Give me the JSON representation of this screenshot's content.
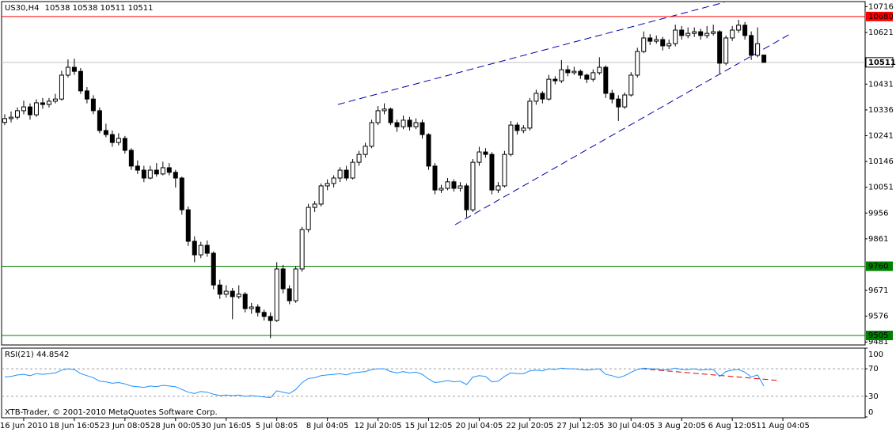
{
  "chart_data": [
    {
      "type": "candlestick",
      "title": "US30,H4",
      "candles": [
        [
          10290,
          10320,
          10280,
          10304
        ],
        [
          10304,
          10330,
          10290,
          10309
        ],
        [
          10309,
          10345,
          10300,
          10333
        ],
        [
          10333,
          10370,
          10320,
          10347
        ],
        [
          10347,
          10360,
          10300,
          10318
        ],
        [
          10318,
          10375,
          10310,
          10362
        ],
        [
          10362,
          10380,
          10340,
          10356
        ],
        [
          10356,
          10380,
          10345,
          10368
        ],
        [
          10368,
          10395,
          10360,
          10376
        ],
        [
          10376,
          10480,
          10370,
          10464
        ],
        [
          10464,
          10522,
          10455,
          10493
        ],
        [
          10493,
          10525,
          10465,
          10478
        ],
        [
          10478,
          10490,
          10395,
          10406
        ],
        [
          10406,
          10420,
          10360,
          10376
        ],
        [
          10376,
          10390,
          10320,
          10333
        ],
        [
          10333,
          10345,
          10250,
          10260
        ],
        [
          10260,
          10285,
          10235,
          10245
        ],
        [
          10245,
          10260,
          10200,
          10216
        ],
        [
          10216,
          10250,
          10205,
          10231
        ],
        [
          10231,
          10240,
          10175,
          10187
        ],
        [
          10187,
          10195,
          10115,
          10129
        ],
        [
          10129,
          10150,
          10100,
          10114
        ],
        [
          10114,
          10130,
          10070,
          10085
        ],
        [
          10085,
          10130,
          10080,
          10114
        ],
        [
          10114,
          10140,
          10090,
          10100
        ],
        [
          10100,
          10145,
          10095,
          10123
        ],
        [
          10123,
          10140,
          10095,
          10106
        ],
        [
          10106,
          10115,
          10050,
          10085
        ],
        [
          10085,
          10090,
          9950,
          9968
        ],
        [
          9968,
          9980,
          9835,
          9852
        ],
        [
          9852,
          9870,
          9775,
          9802
        ],
        [
          9802,
          9850,
          9790,
          9837
        ],
        [
          9837,
          9855,
          9795,
          9808
        ],
        [
          9808,
          9815,
          9675,
          9691
        ],
        [
          9691,
          9710,
          9640,
          9657
        ],
        [
          9657,
          9690,
          9645,
          9668
        ],
        [
          9668,
          9680,
          9565,
          9648
        ],
        [
          9648,
          9690,
          9640,
          9657
        ],
        [
          9657,
          9665,
          9590,
          9604
        ],
        [
          9604,
          9625,
          9585,
          9610
        ],
        [
          9610,
          9620,
          9575,
          9590
        ],
        [
          9590,
          9600,
          9560,
          9575
        ],
        [
          9575,
          9590,
          9495,
          9560
        ],
        [
          9560,
          9775,
          9555,
          9750
        ],
        [
          9750,
          9765,
          9660,
          9677
        ],
        [
          9677,
          9690,
          9620,
          9633
        ],
        [
          9633,
          9760,
          9625,
          9750
        ],
        [
          9750,
          9905,
          9740,
          9895
        ],
        [
          9895,
          9990,
          9885,
          9977
        ],
        [
          9977,
          10000,
          9960,
          9989
        ],
        [
          9989,
          10065,
          9980,
          10056
        ],
        [
          10056,
          10080,
          10040,
          10065
        ],
        [
          10065,
          10095,
          10050,
          10085
        ],
        [
          10085,
          10125,
          10070,
          10114
        ],
        [
          10114,
          10130,
          10075,
          10085
        ],
        [
          10085,
          10155,
          10080,
          10143
        ],
        [
          10143,
          10185,
          10130,
          10172
        ],
        [
          10172,
          10215,
          10160,
          10202
        ],
        [
          10202,
          10300,
          10195,
          10289
        ],
        [
          10289,
          10350,
          10280,
          10333
        ],
        [
          10333,
          10360,
          10320,
          10339
        ],
        [
          10339,
          10345,
          10280,
          10289
        ],
        [
          10289,
          10300,
          10255,
          10274
        ],
        [
          10274,
          10315,
          10265,
          10298
        ],
        [
          10298,
          10310,
          10260,
          10274
        ],
        [
          10274,
          10305,
          10265,
          10289
        ],
        [
          10289,
          10300,
          10230,
          10245
        ],
        [
          10245,
          10250,
          10115,
          10129
        ],
        [
          10129,
          10140,
          10025,
          10041
        ],
        [
          10041,
          10060,
          10030,
          10047
        ],
        [
          10047,
          10085,
          10040,
          10071
        ],
        [
          10071,
          10080,
          10035,
          10047
        ],
        [
          10047,
          10070,
          10035,
          10056
        ],
        [
          10056,
          10065,
          9940,
          9968
        ],
        [
          9968,
          10155,
          9960,
          10143
        ],
        [
          10143,
          10200,
          10130,
          10181
        ],
        [
          10181,
          10195,
          10160,
          10172
        ],
        [
          10172,
          10180,
          10025,
          10041
        ],
        [
          10041,
          10070,
          10030,
          10056
        ],
        [
          10056,
          10185,
          10050,
          10172
        ],
        [
          10172,
          10295,
          10165,
          10280
        ],
        [
          10280,
          10290,
          10245,
          10260
        ],
        [
          10260,
          10280,
          10250,
          10269
        ],
        [
          10269,
          10380,
          10260,
          10368
        ],
        [
          10368,
          10410,
          10355,
          10397
        ],
        [
          10397,
          10405,
          10360,
          10376
        ],
        [
          10376,
          10465,
          10370,
          10449
        ],
        [
          10449,
          10460,
          10430,
          10443
        ],
        [
          10443,
          10520,
          10435,
          10484
        ],
        [
          10484,
          10500,
          10460,
          10473
        ],
        [
          10473,
          10495,
          10465,
          10478
        ],
        [
          10478,
          10485,
          10450,
          10464
        ],
        [
          10464,
          10470,
          10435,
          10449
        ],
        [
          10449,
          10485,
          10440,
          10473
        ],
        [
          10473,
          10530,
          10465,
          10493
        ],
        [
          10493,
          10500,
          10380,
          10397
        ],
        [
          10397,
          10410,
          10360,
          10376
        ],
        [
          10376,
          10390,
          10295,
          10347
        ],
        [
          10347,
          10400,
          10340,
          10391
        ],
        [
          10391,
          10475,
          10385,
          10464
        ],
        [
          10464,
          10565,
          10455,
          10551
        ],
        [
          10551,
          10625,
          10545,
          10601
        ],
        [
          10601,
          10615,
          10575,
          10589
        ],
        [
          10589,
          10610,
          10580,
          10595
        ],
        [
          10595,
          10605,
          10555,
          10572
        ],
        [
          10572,
          10595,
          10560,
          10580
        ],
        [
          10580,
          10650,
          10570,
          10630
        ],
        [
          10630,
          10645,
          10595,
          10610
        ],
        [
          10610,
          10640,
          10600,
          10618
        ],
        [
          10618,
          10640,
          10605,
          10624
        ],
        [
          10624,
          10635,
          10595,
          10610
        ],
        [
          10610,
          10645,
          10600,
          10618
        ],
        [
          10618,
          10650,
          10610,
          10624
        ],
        [
          10624,
          10630,
          10470,
          10508
        ],
        [
          10508,
          10610,
          10500,
          10601
        ],
        [
          10601,
          10645,
          10590,
          10630
        ],
        [
          10630,
          10668,
          10620,
          10648
        ],
        [
          10648,
          10660,
          10595,
          10610
        ],
        [
          10610,
          10625,
          10520,
          10537
        ],
        [
          10537,
          10640,
          10530,
          10580
        ],
        [
          10538,
          10538,
          10511,
          10511
        ]
      ],
      "xlim": [
        -0.5,
        136
      ],
      "xticks": [
        {
          "value": 3,
          "label": "16 Jun 2010"
        },
        {
          "value": 11,
          "label": "18 Jun 16:05"
        },
        {
          "value": 19,
          "label": "23 Jun 08:05"
        },
        {
          "value": 27,
          "label": "28 Jun 00:05"
        },
        {
          "value": 35,
          "label": "30 Jun 16:05"
        },
        {
          "value": 43,
          "label": "5 Jul 08:05"
        },
        {
          "value": 51,
          "label": "8 Jul 04:05"
        },
        {
          "value": 59,
          "label": "12 Jul 20:05"
        },
        {
          "value": 67,
          "label": "15 Jul 12:05"
        },
        {
          "value": 75,
          "label": "20 Jul 04:05"
        },
        {
          "value": 83,
          "label": "22 Jul 20:05"
        },
        {
          "value": 91,
          "label": "27 Jul 12:05"
        },
        {
          "value": 99,
          "label": "30 Jul 04:05"
        },
        {
          "value": 107,
          "label": "3 Aug 20:05"
        },
        {
          "value": 115,
          "label": "6 Aug 12:05"
        },
        {
          "value": 123,
          "label": "11 Aug 04:05"
        }
      ],
      "ylim": [
        9470,
        10735
      ],
      "yticks": [
        10716,
        10621,
        10431,
        10336,
        10241,
        10146,
        10051,
        9956,
        9861,
        9671,
        9576,
        9481
      ],
      "levels": [
        {
          "value": 10680,
          "color": "#ff0000"
        },
        {
          "value": 9760,
          "color": "#008000"
        },
        {
          "value": 9505,
          "color": "#008000"
        }
      ]
    },
    {
      "type": "line",
      "title": "RSI(21) 44.8542",
      "footer": "XTB-Trader, © 2001-2010 MetaQuotes Software Corp.",
      "color": "#1e90ff",
      "values": [
        58,
        59,
        61,
        62,
        60,
        63,
        62,
        63,
        64,
        68,
        70,
        69,
        63,
        60,
        57,
        52,
        51,
        49,
        50,
        48,
        45,
        44,
        43,
        45,
        44,
        46,
        45,
        44,
        40,
        36,
        34,
        37,
        36,
        33,
        31,
        32,
        31,
        32,
        30,
        31,
        30,
        29,
        28,
        38,
        36,
        34,
        40,
        50,
        56,
        57,
        60,
        61,
        62,
        63,
        61,
        64,
        65,
        66,
        69,
        70,
        70,
        66,
        64,
        66,
        64,
        65,
        62,
        55,
        50,
        51,
        53,
        51,
        52,
        47,
        58,
        60,
        59,
        51,
        52,
        59,
        64,
        63,
        63,
        67,
        68,
        67,
        70,
        69,
        71,
        70,
        70,
        69,
        68,
        69,
        70,
        62,
        60,
        57,
        60,
        65,
        69,
        71,
        70,
        70,
        68,
        69,
        71,
        69,
        69,
        70,
        68,
        69,
        69,
        59,
        66,
        68,
        69,
        65,
        58,
        61,
        44.8542
      ],
      "ylim": [
        0,
        100
      ],
      "yticks": [
        100,
        70,
        30,
        0
      ],
      "grid": true
    }
  ]
}
